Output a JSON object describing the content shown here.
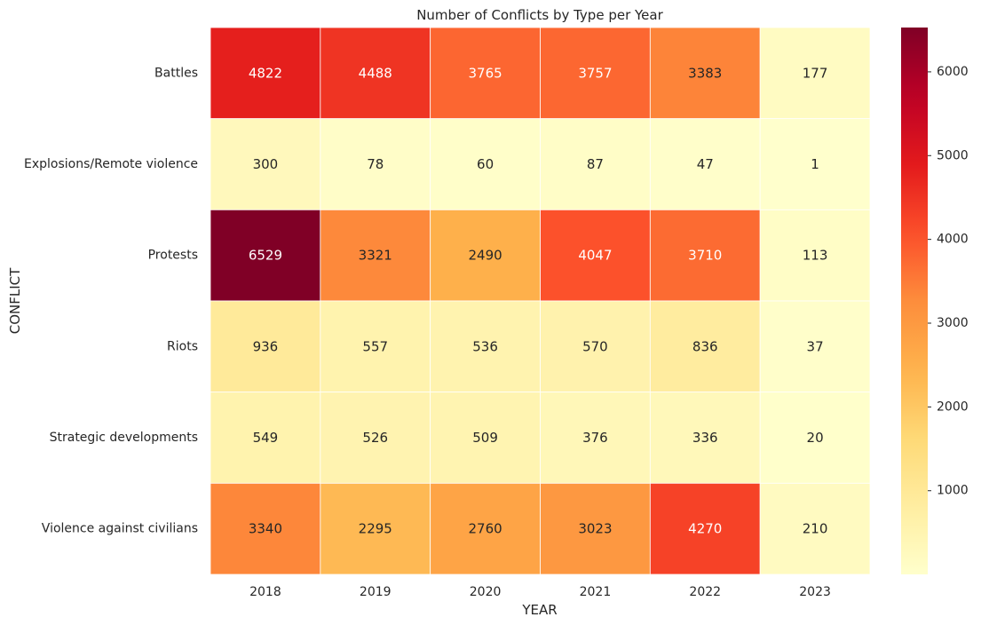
{
  "chart_data": {
    "type": "heatmap",
    "title": "Number of Conflicts by Type per Year",
    "xlabel": "YEAR",
    "ylabel": "CONFLICT",
    "x_categories": [
      "2018",
      "2019",
      "2020",
      "2021",
      "2022",
      "2023"
    ],
    "y_categories": [
      "Battles",
      "Explosions/Remote violence",
      "Protests",
      "Riots",
      "Strategic developments",
      "Violence against civilians"
    ],
    "values": [
      [
        4822,
        4488,
        3765,
        3757,
        3383,
        177
      ],
      [
        300,
        78,
        60,
        87,
        47,
        1
      ],
      [
        6529,
        3321,
        2490,
        4047,
        3710,
        113
      ],
      [
        936,
        557,
        536,
        570,
        836,
        37
      ],
      [
        549,
        526,
        509,
        376,
        336,
        20
      ],
      [
        3340,
        2295,
        2760,
        3023,
        4270,
        210
      ]
    ],
    "colormap": "YlOrRd",
    "vmin": 1,
    "vmax": 6529,
    "colorbar_ticks": [
      1000,
      2000,
      3000,
      4000,
      5000,
      6000
    ],
    "annotations": true,
    "cell_border_color": "#ffffff"
  }
}
